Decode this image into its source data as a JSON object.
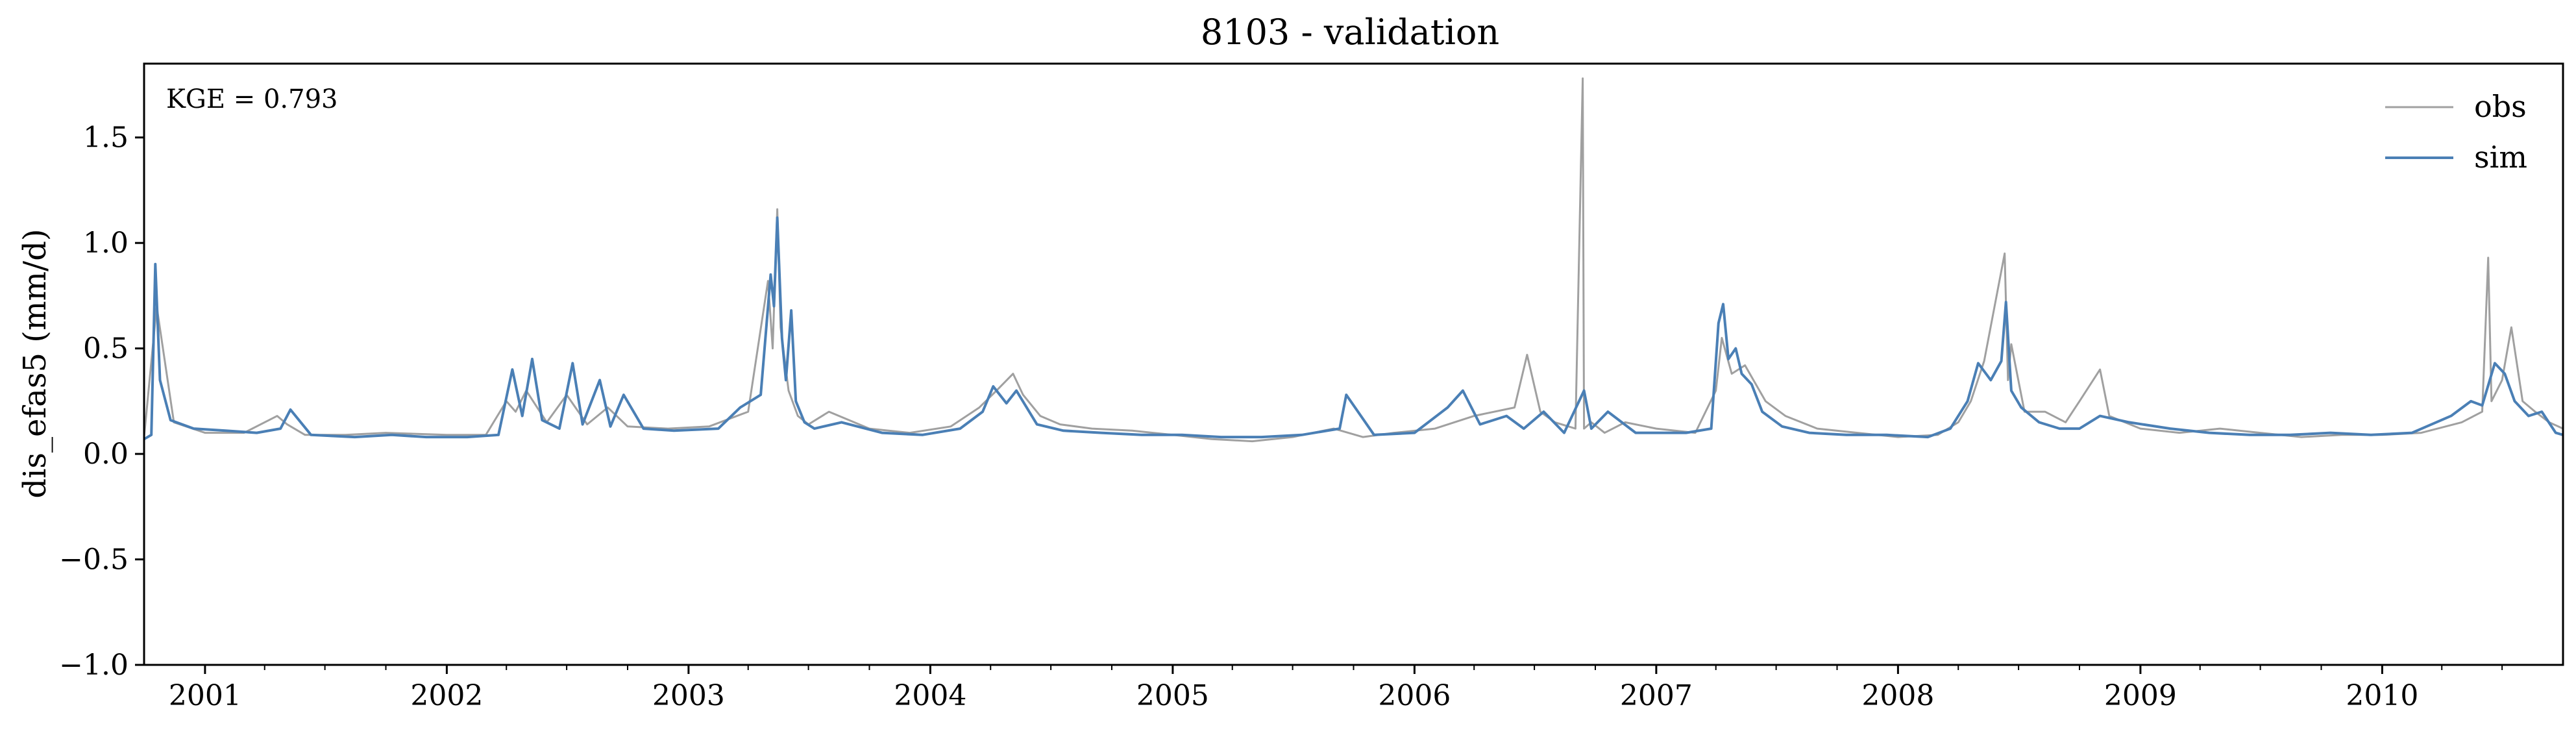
{
  "chart_data": {
    "type": "line",
    "title": "8103 - validation",
    "xlabel": "",
    "ylabel": "dis_efas5 (mm/d)",
    "annotation": "KGE = 0.793",
    "legend_position": "top-right",
    "grid": false,
    "x_range": [
      "2000-10-01",
      "2010-10-01"
    ],
    "ylim": [
      -1.0,
      1.85
    ],
    "y_ticks": [
      -1.0,
      -0.5,
      0.0,
      0.5,
      1.0,
      1.5
    ],
    "y_tick_labels": [
      "−1.0",
      "−0.5",
      "0.0",
      "0.5",
      "1.0",
      "1.5"
    ],
    "x_ticks": [
      "2001-01-01",
      "2002-01-01",
      "2003-01-01",
      "2004-01-01",
      "2005-01-01",
      "2006-01-01",
      "2007-01-01",
      "2008-01-01",
      "2009-01-01",
      "2010-01-01"
    ],
    "x_tick_labels": [
      "2001",
      "2002",
      "2003",
      "2004",
      "2005",
      "2006",
      "2007",
      "2008",
      "2009",
      "2010"
    ],
    "series": [
      {
        "name": "obs",
        "color": "#a0a0a0",
        "x": [
          "2000-10-01",
          "2000-10-20",
          "2000-11-15",
          "2001-01-01",
          "2001-03-01",
          "2001-04-20",
          "2001-05-05",
          "2001-06-01",
          "2001-08-01",
          "2001-10-01",
          "2002-01-01",
          "2002-03-01",
          "2002-04-01",
          "2002-04-15",
          "2002-05-01",
          "2002-06-01",
          "2002-07-01",
          "2002-08-01",
          "2002-09-01",
          "2002-10-01",
          "2002-12-01",
          "2003-02-01",
          "2003-04-01",
          "2003-05-01",
          "2003-05-08",
          "2003-05-15",
          "2003-05-20",
          "2003-06-01",
          "2003-06-15",
          "2003-07-01",
          "2003-08-01",
          "2003-10-01",
          "2003-12-01",
          "2004-02-01",
          "2004-03-15",
          "2004-04-10",
          "2004-05-05",
          "2004-05-20",
          "2004-06-15",
          "2004-07-15",
          "2004-09-01",
          "2004-11-01",
          "2005-01-01",
          "2005-03-01",
          "2005-05-01",
          "2005-07-01",
          "2005-09-01",
          "2005-10-15",
          "2005-12-01",
          "2006-02-01",
          "2006-04-01",
          "2006-06-01",
          "2006-06-20",
          "2006-07-10",
          "2006-08-01",
          "2006-09-01",
          "2006-09-12",
          "2006-09-14",
          "2006-09-25",
          "2006-10-15",
          "2006-11-15",
          "2007-01-01",
          "2007-03-01",
          "2007-04-01",
          "2007-04-10",
          "2007-04-25",
          "2007-05-15",
          "2007-06-15",
          "2007-07-15",
          "2007-09-01",
          "2007-11-01",
          "2008-01-01",
          "2008-03-01",
          "2008-04-01",
          "2008-04-20",
          "2008-05-10",
          "2008-06-10",
          "2008-06-15",
          "2008-06-20",
          "2008-07-10",
          "2008-08-10",
          "2008-09-10",
          "2008-10-01",
          "2008-11-01",
          "2008-11-15",
          "2009-01-01",
          "2009-03-01",
          "2009-05-01",
          "2009-07-01",
          "2009-09-01",
          "2009-11-01",
          "2010-01-01",
          "2010-03-01",
          "2010-05-01",
          "2010-06-01",
          "2010-06-10",
          "2010-06-15",
          "2010-07-01",
          "2010-07-15",
          "2010-08-01",
          "2010-08-20",
          "2010-09-10",
          "2010-10-01"
        ],
        "values": [
          0.08,
          0.7,
          0.15,
          0.1,
          0.1,
          0.18,
          0.14,
          0.09,
          0.09,
          0.1,
          0.09,
          0.09,
          0.25,
          0.2,
          0.3,
          0.15,
          0.28,
          0.14,
          0.22,
          0.13,
          0.12,
          0.13,
          0.2,
          0.82,
          0.5,
          1.16,
          0.6,
          0.3,
          0.18,
          0.14,
          0.2,
          0.12,
          0.1,
          0.13,
          0.22,
          0.3,
          0.38,
          0.28,
          0.18,
          0.14,
          0.12,
          0.11,
          0.09,
          0.07,
          0.06,
          0.08,
          0.12,
          0.08,
          0.1,
          0.12,
          0.18,
          0.22,
          0.47,
          0.2,
          0.15,
          0.12,
          1.78,
          0.12,
          0.15,
          0.1,
          0.15,
          0.12,
          0.1,
          0.3,
          0.55,
          0.38,
          0.42,
          0.25,
          0.18,
          0.12,
          0.1,
          0.08,
          0.09,
          0.15,
          0.25,
          0.44,
          0.95,
          0.35,
          0.52,
          0.2,
          0.2,
          0.15,
          0.25,
          0.4,
          0.18,
          0.12,
          0.1,
          0.12,
          0.1,
          0.08,
          0.09,
          0.09,
          0.1,
          0.15,
          0.2,
          0.93,
          0.25,
          0.35,
          0.6,
          0.25,
          0.2,
          0.15,
          0.12
        ]
      },
      {
        "name": "sim",
        "color": "#4a7fb5",
        "x": [
          "2000-10-01",
          "2000-10-12",
          "2000-10-18",
          "2000-10-25",
          "2000-11-10",
          "2000-12-15",
          "2001-02-01",
          "2001-03-20",
          "2001-04-25",
          "2001-05-10",
          "2001-06-10",
          "2001-08-15",
          "2001-10-10",
          "2001-12-01",
          "2002-02-01",
          "2002-03-20",
          "2002-04-10",
          "2002-04-25",
          "2002-05-10",
          "2002-05-25",
          "2002-06-20",
          "2002-07-10",
          "2002-07-25",
          "2002-08-20",
          "2002-09-05",
          "2002-09-25",
          "2002-10-25",
          "2002-12-10",
          "2003-02-15",
          "2003-03-20",
          "2003-04-20",
          "2003-05-05",
          "2003-05-10",
          "2003-05-15",
          "2003-05-22",
          "2003-05-28",
          "2003-06-05",
          "2003-06-12",
          "2003-06-25",
          "2003-07-10",
          "2003-08-20",
          "2003-10-20",
          "2003-12-20",
          "2004-02-15",
          "2004-03-20",
          "2004-04-05",
          "2004-04-25",
          "2004-05-10",
          "2004-06-10",
          "2004-07-20",
          "2004-09-15",
          "2004-11-15",
          "2005-01-15",
          "2005-03-15",
          "2005-05-15",
          "2005-07-15",
          "2005-09-10",
          "2005-09-20",
          "2005-11-01",
          "2006-01-01",
          "2006-02-20",
          "2006-03-15",
          "2006-04-10",
          "2006-05-20",
          "2006-06-15",
          "2006-07-15",
          "2006-08-15",
          "2006-09-14",
          "2006-09-25",
          "2006-10-20",
          "2006-12-01",
          "2007-02-15",
          "2007-03-25",
          "2007-04-05",
          "2007-04-12",
          "2007-04-20",
          "2007-05-01",
          "2007-05-10",
          "2007-05-25",
          "2007-06-10",
          "2007-07-10",
          "2007-08-20",
          "2007-10-15",
          "2007-12-15",
          "2008-02-15",
          "2008-03-20",
          "2008-04-15",
          "2008-05-01",
          "2008-05-20",
          "2008-06-05",
          "2008-06-12",
          "2008-06-20",
          "2008-07-05",
          "2008-08-01",
          "2008-09-01",
          "2008-10-01",
          "2008-11-01",
          "2008-12-15",
          "2009-02-15",
          "2009-04-15",
          "2009-06-15",
          "2009-08-15",
          "2009-10-15",
          "2009-12-15",
          "2010-02-15",
          "2010-04-15",
          "2010-05-15",
          "2010-06-01",
          "2010-06-20",
          "2010-07-05",
          "2010-07-20",
          "2010-08-10",
          "2010-08-30",
          "2010-09-20",
          "2010-10-01"
        ],
        "values": [
          0.07,
          0.09,
          0.9,
          0.35,
          0.16,
          0.12,
          0.11,
          0.1,
          0.12,
          0.21,
          0.09,
          0.08,
          0.09,
          0.08,
          0.08,
          0.09,
          0.4,
          0.18,
          0.45,
          0.16,
          0.12,
          0.43,
          0.14,
          0.35,
          0.13,
          0.28,
          0.12,
          0.11,
          0.12,
          0.22,
          0.28,
          0.85,
          0.7,
          1.12,
          0.55,
          0.35,
          0.68,
          0.25,
          0.15,
          0.12,
          0.15,
          0.1,
          0.09,
          0.12,
          0.2,
          0.32,
          0.24,
          0.3,
          0.14,
          0.11,
          0.1,
          0.09,
          0.09,
          0.08,
          0.08,
          0.09,
          0.12,
          0.28,
          0.09,
          0.1,
          0.22,
          0.3,
          0.14,
          0.18,
          0.12,
          0.2,
          0.1,
          0.3,
          0.12,
          0.2,
          0.1,
          0.1,
          0.12,
          0.62,
          0.71,
          0.45,
          0.5,
          0.38,
          0.33,
          0.2,
          0.13,
          0.1,
          0.09,
          0.09,
          0.08,
          0.12,
          0.25,
          0.43,
          0.35,
          0.44,
          0.72,
          0.3,
          0.22,
          0.15,
          0.12,
          0.12,
          0.18,
          0.15,
          0.12,
          0.1,
          0.09,
          0.09,
          0.1,
          0.09,
          0.1,
          0.18,
          0.25,
          0.23,
          0.43,
          0.38,
          0.25,
          0.18,
          0.2,
          0.1,
          0.09
        ]
      }
    ]
  }
}
